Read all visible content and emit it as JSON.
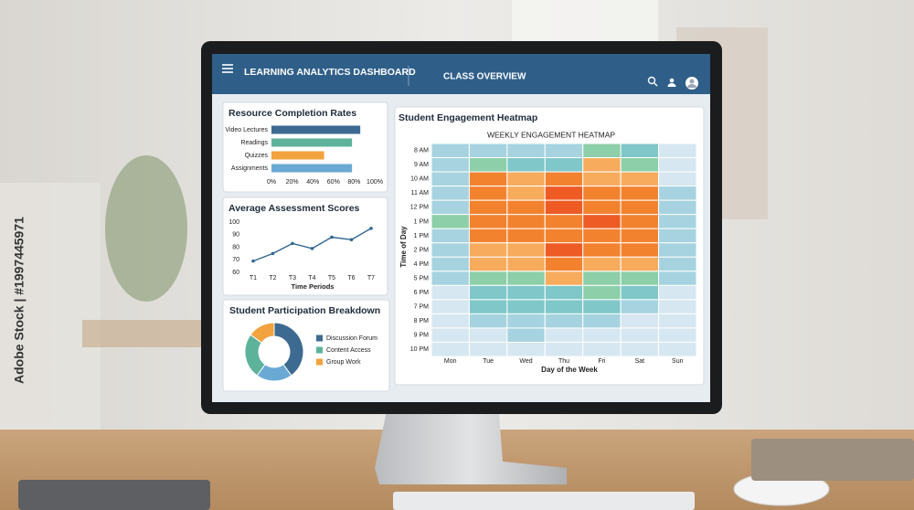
{
  "header": {
    "title": "LEARNING ANALYTICS DASHBOARD",
    "section": "CLASS OVERVIEW"
  },
  "watermark": "Adobe Stock | #1997445971",
  "chart_data": [
    {
      "type": "hbar",
      "title": "Resource Completion Rates",
      "categories": [
        "Video Lectures",
        "Readings",
        "Quizzes",
        "Assignments"
      ],
      "values": [
        86,
        78,
        51,
        78
      ],
      "colors": [
        "#3d6a90",
        "#5db39a",
        "#f2a23e",
        "#6aa9d4"
      ],
      "xlim": [
        0,
        100
      ],
      "xticks": [
        {
          "value": 0,
          "label": "0%"
        },
        {
          "value": 20,
          "label": "20%"
        },
        {
          "value": 40,
          "label": "40%"
        },
        {
          "value": 60,
          "label": "60%"
        },
        {
          "value": 80,
          "label": "80%"
        },
        {
          "value": 100,
          "label": "100%"
        }
      ]
    },
    {
      "type": "line",
      "title": "Average Assessment Scores",
      "categories": [
        "T1",
        "T2",
        "T3",
        "T4",
        "T5",
        "T6",
        "T7"
      ],
      "values": [
        69,
        75,
        83,
        79,
        88,
        86,
        95
      ],
      "color": "#2f6690",
      "xlabel": "Time Periods",
      "ylim": [
        60,
        100
      ],
      "yticks": [
        60,
        70,
        80,
        90,
        100
      ]
    },
    {
      "type": "donut",
      "title": "Student Participation Breakdown",
      "categories": [
        "Discussion Forum",
        null,
        "Content Access",
        "Group Work"
      ],
      "values": [
        40,
        20,
        25,
        15
      ],
      "colors": [
        "#3d6a90",
        "#6aa9d4",
        "#5db39a",
        "#f2a23e"
      ]
    },
    {
      "type": "heatmap",
      "title": "Student Engagement Heatmap",
      "subtitle": "WEEKLY ENGAGEMENT HEATMAP",
      "xlabel": "Day of the Week",
      "ylabel": "Time of Day",
      "columns": [
        "Mon",
        "Tue",
        "Wed",
        "Thu",
        "Fri",
        "Sat",
        "Sun"
      ],
      "rows": [
        "8 AM",
        "9 AM",
        "10 AM",
        "11 AM",
        "12 PM",
        "1 PM",
        "1 PM",
        "2 PM",
        "4 PM",
        "5 PM",
        "6 PM",
        "7 PM",
        "8 PM",
        "9 PM",
        "10 PM"
      ],
      "values": [
        [
          2,
          2,
          2,
          2,
          4,
          3,
          1
        ],
        [
          2,
          4,
          3,
          3,
          5,
          4,
          1
        ],
        [
          2,
          6,
          5,
          6,
          5,
          5,
          1
        ],
        [
          2,
          6,
          5,
          7,
          6,
          6,
          2
        ],
        [
          2,
          6,
          6,
          7,
          6,
          6,
          2
        ],
        [
          4,
          6,
          6,
          6,
          7,
          6,
          2
        ],
        [
          2,
          6,
          6,
          6,
          6,
          6,
          2
        ],
        [
          2,
          5,
          5,
          7,
          6,
          6,
          2
        ],
        [
          2,
          5,
          5,
          6,
          5,
          5,
          2
        ],
        [
          2,
          4,
          4,
          5,
          4,
          4,
          2
        ],
        [
          1,
          3,
          3,
          3,
          4,
          3,
          1
        ],
        [
          1,
          3,
          3,
          3,
          3,
          2,
          1
        ],
        [
          1,
          2,
          2,
          2,
          2,
          1,
          1
        ],
        [
          1,
          1,
          2,
          1,
          1,
          1,
          1
        ],
        [
          1,
          1,
          1,
          1,
          1,
          1,
          1
        ]
      ],
      "palette": [
        "#d6e7f1",
        "#a6d3df",
        "#7fc7c9",
        "#8ccfa8",
        "#f6ab5d",
        "#f3822f",
        "#ee5b24"
      ]
    }
  ]
}
